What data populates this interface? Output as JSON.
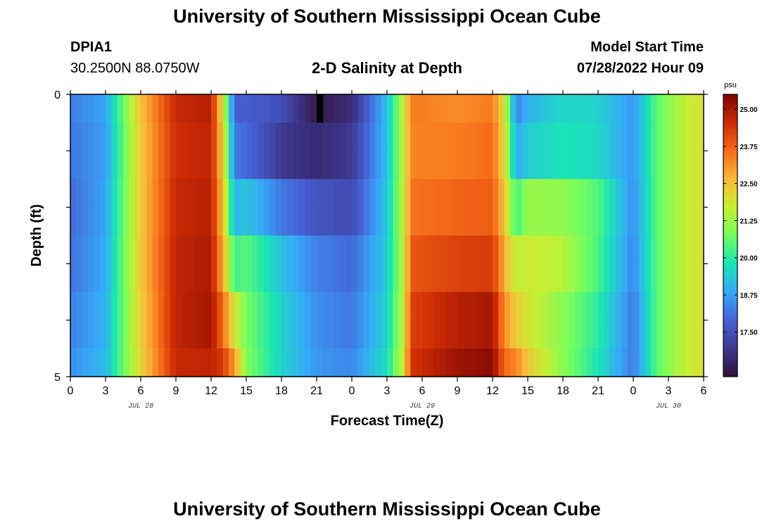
{
  "header": {
    "title": "University of Southern Mississippi Ocean Cube",
    "station": "DPIA1",
    "coords": "30.2500N  88.0750W",
    "subtitle": "2-D Salinity at Depth",
    "model_start_label": "Model Start Time",
    "model_start_value": "07/28/2022 Hour 09"
  },
  "footer": {
    "title": "University of Southern Mississippi Ocean Cube"
  },
  "chart_data": {
    "type": "heatmap",
    "title": "2-D Salinity at Depth",
    "xlabel": "Forecast Time(Z)",
    "ylabel": "Depth (ft)",
    "x_ticks": [
      "0",
      "3",
      "6",
      "9",
      "12",
      "15",
      "18",
      "21",
      "0",
      "3",
      "6",
      "9",
      "12",
      "15",
      "18",
      "21",
      "0",
      "3",
      "6"
    ],
    "day_labels": [
      {
        "label": "JUL 28",
        "tick_index": 2
      },
      {
        "label": "JUL 29",
        "tick_index": 10
      },
      {
        "label": "JUL 30",
        "tick_index": 17
      }
    ],
    "y_range": [
      0,
      5
    ],
    "y_tick_labels": [
      "0",
      "5"
    ],
    "colorbar": {
      "unit": "psu",
      "min": 16.0,
      "max": 25.5,
      "ticks": [
        "25.00",
        "23.75",
        "22.50",
        "21.25",
        "20.00",
        "18.75",
        "17.50"
      ],
      "colors": [
        "#30123b",
        "#3e378f",
        "#4662d7",
        "#36aaf9",
        "#1ae4b6",
        "#72fe5e",
        "#c8ef34",
        "#faba39",
        "#f66b19",
        "#cb2a04",
        "#7a0403"
      ]
    },
    "hours": [
      0,
      3,
      6,
      9,
      12,
      13,
      14,
      15,
      18,
      21,
      24,
      27,
      28.5,
      29,
      33,
      36,
      37,
      38,
      39,
      42,
      45,
      48,
      50,
      52,
      54
    ],
    "layers": [
      {
        "depth_ft": 0.25,
        "values": [
          18.3,
          18.8,
          22.5,
          24.6,
          24.8,
          22.0,
          17.8,
          17.8,
          17.5,
          16.2,
          16.7,
          19.2,
          21.8,
          23.4,
          23.2,
          23.4,
          22.0,
          18.3,
          19.0,
          19.6,
          19.5,
          18.6,
          20.5,
          21.5,
          22.0
        ]
      },
      {
        "depth_ft": 0.75,
        "values": [
          18.2,
          18.7,
          22.4,
          24.5,
          24.7,
          22.3,
          18.2,
          18.0,
          17.0,
          16.6,
          17.0,
          19.2,
          21.8,
          23.3,
          23.4,
          23.6,
          22.2,
          18.8,
          19.4,
          19.8,
          19.6,
          18.6,
          20.5,
          21.5,
          22.0
        ]
      },
      {
        "depth_ft": 1.25,
        "values": [
          18.2,
          18.7,
          22.4,
          24.5,
          24.7,
          22.3,
          18.2,
          18.0,
          17.0,
          16.6,
          17.0,
          19.2,
          21.8,
          23.3,
          23.4,
          23.6,
          22.2,
          18.8,
          19.4,
          19.8,
          19.6,
          18.6,
          20.5,
          21.5,
          22.0
        ]
      },
      {
        "depth_ft": 1.75,
        "values": [
          18.0,
          18.8,
          22.4,
          24.6,
          24.8,
          22.5,
          19.0,
          19.3,
          18.2,
          17.6,
          17.4,
          19.3,
          21.8,
          23.5,
          23.7,
          23.8,
          22.5,
          20.2,
          21.2,
          21.1,
          20.4,
          18.5,
          20.5,
          21.5,
          22.0
        ]
      },
      {
        "depth_ft": 2.25,
        "values": [
          18.0,
          18.8,
          22.4,
          24.6,
          24.8,
          22.5,
          19.0,
          19.3,
          18.2,
          17.6,
          17.4,
          19.3,
          21.8,
          23.5,
          23.7,
          23.8,
          22.5,
          20.2,
          21.2,
          21.1,
          20.4,
          18.5,
          20.5,
          21.5,
          22.0
        ]
      },
      {
        "depth_ft": 2.75,
        "values": [
          18.1,
          18.9,
          22.4,
          24.7,
          24.9,
          22.8,
          20.2,
          20.5,
          19.2,
          18.3,
          18.0,
          19.4,
          21.7,
          23.9,
          24.2,
          24.3,
          22.8,
          21.6,
          21.8,
          21.5,
          20.3,
          18.4,
          20.5,
          21.5,
          22.0
        ]
      },
      {
        "depth_ft": 3.25,
        "values": [
          18.1,
          18.9,
          22.4,
          24.7,
          24.9,
          22.8,
          20.2,
          20.5,
          19.2,
          18.3,
          18.0,
          19.4,
          21.7,
          23.9,
          24.2,
          24.3,
          22.8,
          21.6,
          21.8,
          21.5,
          20.3,
          18.4,
          20.5,
          21.5,
          22.0
        ]
      },
      {
        "depth_ft": 3.75,
        "values": [
          18.3,
          19.0,
          22.3,
          24.7,
          25.0,
          23.6,
          21.8,
          20.8,
          19.5,
          18.5,
          18.2,
          19.5,
          21.8,
          24.2,
          24.8,
          25.0,
          23.2,
          22.3,
          21.9,
          21.0,
          20.0,
          18.2,
          20.5,
          21.5,
          22.0
        ]
      },
      {
        "depth_ft": 4.25,
        "values": [
          18.3,
          19.0,
          22.3,
          24.7,
          25.0,
          23.6,
          21.8,
          20.8,
          19.5,
          18.5,
          18.2,
          19.5,
          21.8,
          24.2,
          24.8,
          25.0,
          23.2,
          22.3,
          21.9,
          21.0,
          20.0,
          18.2,
          20.5,
          21.5,
          22.0
        ]
      },
      {
        "depth_ft": 4.75,
        "values": [
          18.5,
          19.1,
          22.2,
          24.6,
          24.7,
          24.3,
          23.0,
          20.9,
          19.5,
          18.6,
          18.4,
          19.7,
          21.9,
          24.4,
          25.1,
          25.3,
          23.6,
          23.3,
          22.4,
          21.0,
          19.8,
          18.2,
          20.5,
          21.5,
          22.0
        ]
      }
    ],
    "missing_cells": [
      {
        "hour_start": 21,
        "hour_end": 21.5,
        "depth_start": 0,
        "depth_end": 0.5
      }
    ]
  }
}
